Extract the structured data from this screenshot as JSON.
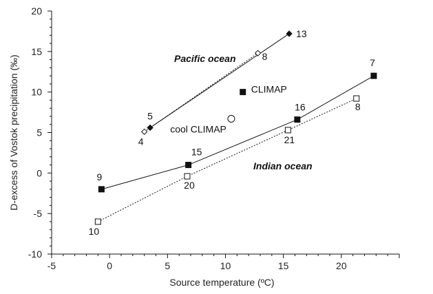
{
  "chart_data": {
    "type": "scatter",
    "xlabel": "Source temperature  (ºC)",
    "ylabel": "D-excess of Vostok precipitation  (‰)",
    "xlim": [
      -5,
      25
    ],
    "ylim": [
      -10,
      20
    ],
    "xticks": [
      "-5",
      "0",
      "5",
      "10",
      "15",
      "20"
    ],
    "yticks": [
      "-10",
      "-5",
      "0",
      "5",
      "10",
      "15",
      "20"
    ],
    "series": [
      {
        "name": "Pacific ocean",
        "marker": "diamond-filled",
        "line": "solid",
        "points": [
          {
            "x": 3.5,
            "y": 5.6,
            "label": "5"
          },
          {
            "x": 15.5,
            "y": 17.2,
            "label": "13"
          }
        ]
      },
      {
        "name": "",
        "marker": "diamond-open",
        "line": "dotted",
        "points": [
          {
            "x": 3.0,
            "y": 5.1,
            "label": "4"
          },
          {
            "x": 12.8,
            "y": 14.8,
            "label": "8"
          }
        ]
      },
      {
        "name": "Indian ocean",
        "marker": "square-filled",
        "line": "solid",
        "points": [
          {
            "x": -0.7,
            "y": -2.0,
            "label": "9"
          },
          {
            "x": 6.8,
            "y": 1.0,
            "label": "15"
          },
          {
            "x": 16.2,
            "y": 6.6,
            "label": "16"
          },
          {
            "x": 22.8,
            "y": 12.0,
            "label": "7"
          }
        ]
      },
      {
        "name": "",
        "marker": "square-open",
        "line": "dotted",
        "points": [
          {
            "x": -1.0,
            "y": -6.0,
            "label": "10"
          },
          {
            "x": 6.7,
            "y": -0.4,
            "label": "20"
          },
          {
            "x": 15.4,
            "y": 5.3,
            "label": "21"
          },
          {
            "x": 21.3,
            "y": 9.2,
            "label": "8"
          }
        ]
      }
    ],
    "annotations": [
      {
        "text": "CLIMAP",
        "x": 11.5,
        "y": 10.0,
        "marker": "square-filled"
      },
      {
        "text": "cool CLIMAP",
        "x": 10.5,
        "y": 6.7,
        "marker": "circle-open"
      }
    ],
    "region_labels": [
      {
        "text": "Pacific ocean"
      },
      {
        "text": "Indian ocean"
      }
    ],
    "grid": false,
    "colors": {
      "ink": "#111111"
    }
  }
}
